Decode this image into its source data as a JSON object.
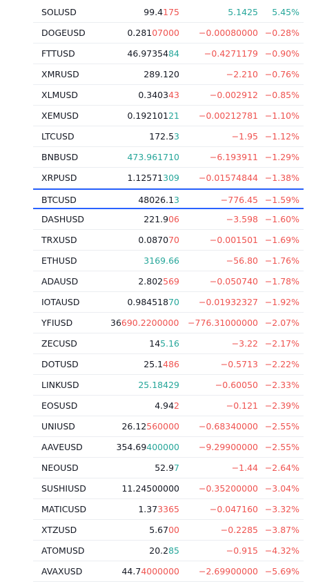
{
  "colors": {
    "up": "#26a69a",
    "down": "#ef5350",
    "neutral": "#131722",
    "highlight": "#2962ff"
  },
  "table": {
    "highlight_row": 9,
    "rows": [
      {
        "symbol": "SOLUSD",
        "price_base": "99.4",
        "price_tail": "175",
        "tail_trend": "down",
        "change": "5.1425",
        "change_pct": "5.45%",
        "trend": "up"
      },
      {
        "symbol": "DOGEUSD",
        "price_base": "0.281",
        "price_tail": "07000",
        "tail_trend": "down",
        "change": "−0.00080000",
        "change_pct": "−0.28%",
        "trend": "down"
      },
      {
        "symbol": "FTTUSD",
        "price_base": "46.97354",
        "price_tail": "84",
        "tail_trend": "up",
        "change": "−0.4271179",
        "change_pct": "−0.90%",
        "trend": "down"
      },
      {
        "symbol": "XMRUSD",
        "price_base": "289.120",
        "change": "−2.210",
        "change_pct": "−0.76%",
        "trend": "down"
      },
      {
        "symbol": "XLMUSD",
        "price_base": "0.3403",
        "price_tail": "43",
        "tail_trend": "down",
        "change": "−0.002912",
        "change_pct": "−0.85%",
        "trend": "down"
      },
      {
        "symbol": "XEMUSD",
        "price_base": "0.192101",
        "price_tail": "21",
        "tail_trend": "up",
        "change": "−0.00212781",
        "change_pct": "−1.10%",
        "trend": "down"
      },
      {
        "symbol": "LTCUSD",
        "price_base": "172.5",
        "price_tail": "3",
        "tail_trend": "up",
        "change": "−1.95",
        "change_pct": "−1.12%",
        "trend": "down"
      },
      {
        "symbol": "BNBUSD",
        "price_tail": "473.961710",
        "tail_trend": "up",
        "change": "−6.193911",
        "change_pct": "−1.29%",
        "trend": "down"
      },
      {
        "symbol": "XRPUSD",
        "price_base": "1.12571",
        "price_tail": "309",
        "tail_trend": "up",
        "change": "−0.01574844",
        "change_pct": "−1.38%",
        "trend": "down"
      },
      {
        "symbol": "BTCUSD",
        "price_base": "48026.1",
        "price_tail": "3",
        "tail_trend": "up",
        "change": "−776.45",
        "change_pct": "−1.59%",
        "trend": "down"
      },
      {
        "symbol": "DASHUSD",
        "price_base": "221.9",
        "price_tail": "06",
        "tail_trend": "down",
        "change": "−3.598",
        "change_pct": "−1.60%",
        "trend": "down"
      },
      {
        "symbol": "TRXUSD",
        "price_base": "0.0870",
        "price_tail": "70",
        "tail_trend": "down",
        "change": "−0.001501",
        "change_pct": "−1.69%",
        "trend": "down"
      },
      {
        "symbol": "ETHUSD",
        "price_tail": "3169.66",
        "tail_trend": "up",
        "change": "−56.80",
        "change_pct": "−1.76%",
        "trend": "down"
      },
      {
        "symbol": "ADAUSD",
        "price_base": "2.802",
        "price_tail": "569",
        "tail_trend": "down",
        "change": "−0.050740",
        "change_pct": "−1.78%",
        "trend": "down"
      },
      {
        "symbol": "IOTAUSD",
        "price_base": "0.984518",
        "price_tail": "70",
        "tail_trend": "up",
        "change": "−0.01932327",
        "change_pct": "−1.92%",
        "trend": "down"
      },
      {
        "symbol": "YFIUSD",
        "price_base": "36",
        "price_tail": "690.2200000(",
        "tail_trend": "down",
        "change": "−776.31000000",
        "change_pct": "−2.07%",
        "trend": "down"
      },
      {
        "symbol": "ZECUSD",
        "price_base": "14",
        "price_tail": "5.16",
        "tail_trend": "up",
        "change": "−3.22",
        "change_pct": "−2.17%",
        "trend": "down"
      },
      {
        "symbol": "DOTUSD",
        "price_base": "25.1",
        "price_tail": "486",
        "tail_trend": "down",
        "change": "−0.5713",
        "change_pct": "−2.22%",
        "trend": "down"
      },
      {
        "symbol": "LINKUSD",
        "price_tail": "25.18429",
        "tail_trend": "up",
        "change": "−0.60050",
        "change_pct": "−2.33%",
        "trend": "down"
      },
      {
        "symbol": "EOSUSD",
        "price_base": "4.94",
        "price_tail": "2",
        "tail_trend": "down",
        "change": "−0.121",
        "change_pct": "−2.39%",
        "trend": "down"
      },
      {
        "symbol": "UNIUSD",
        "price_base": "26.12",
        "price_tail": "560000",
        "tail_trend": "down",
        "change": "−0.68340000",
        "change_pct": "−2.55%",
        "trend": "down"
      },
      {
        "symbol": "AAVEUSD",
        "price_base": "354.69",
        "price_tail": "400000",
        "tail_trend": "up",
        "change": "−9.29900000",
        "change_pct": "−2.55%",
        "trend": "down"
      },
      {
        "symbol": "NEOUSD",
        "price_base": "52.9",
        "price_tail": "7",
        "tail_trend": "up",
        "change": "−1.44",
        "change_pct": "−2.64%",
        "trend": "down"
      },
      {
        "symbol": "SUSHIUSD",
        "price_base": "11.24500000",
        "change": "−0.35200000",
        "change_pct": "−3.04%",
        "trend": "down"
      },
      {
        "symbol": "MATICUSD",
        "price_base": "1.37",
        "price_tail": "3365",
        "tail_trend": "down",
        "change": "−0.047160",
        "change_pct": "−3.32%",
        "trend": "down"
      },
      {
        "symbol": "XTZUSD",
        "price_base": "5.67",
        "price_tail": "00",
        "tail_trend": "down",
        "change": "−0.2285",
        "change_pct": "−3.87%",
        "trend": "down"
      },
      {
        "symbol": "ATOMUSD",
        "price_base": "20.2",
        "price_tail": "85",
        "tail_trend": "up",
        "change": "−0.915",
        "change_pct": "−4.32%",
        "trend": "down"
      },
      {
        "symbol": "AVAXUSD",
        "price_base": "44.7",
        "price_tail": "4000000",
        "tail_trend": "down",
        "change": "−2.69900000",
        "change_pct": "−5.69%",
        "trend": "down"
      }
    ]
  }
}
